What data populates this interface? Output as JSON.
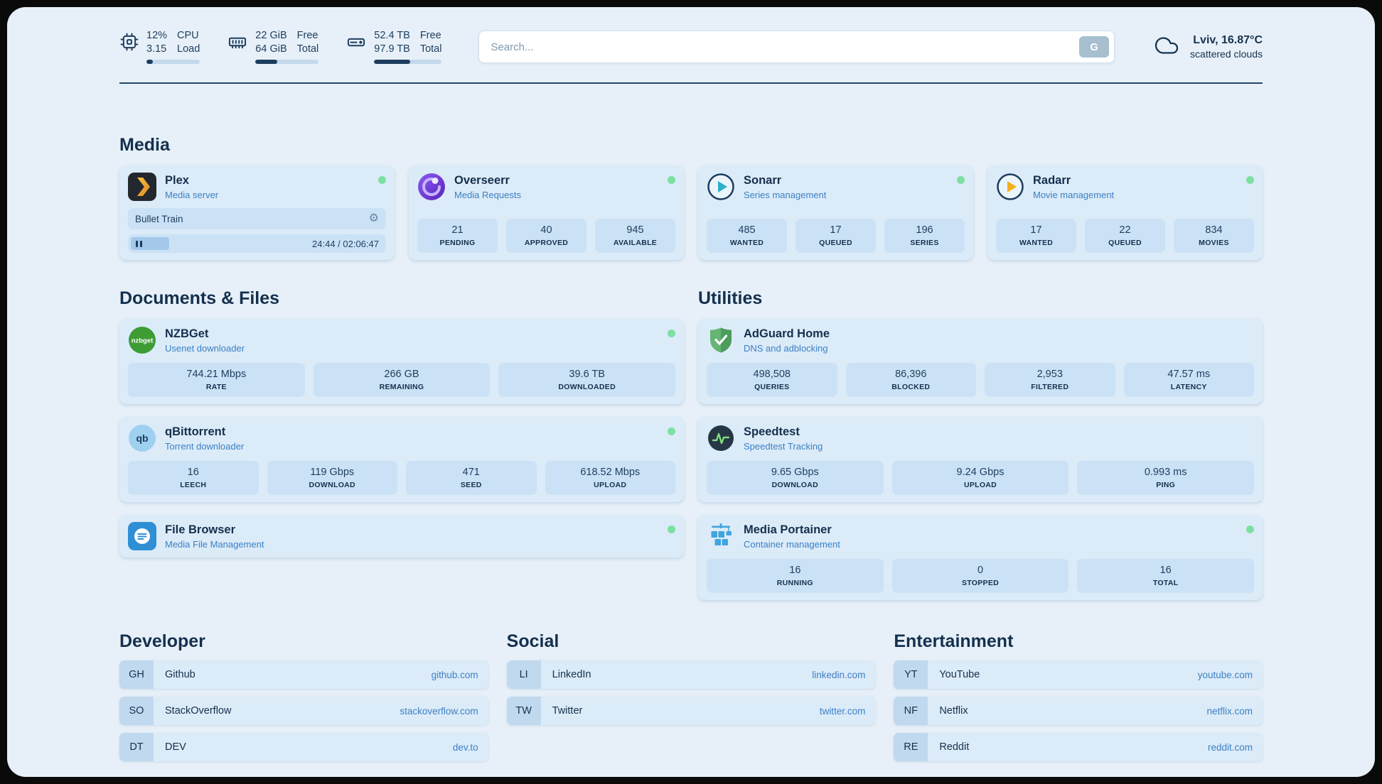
{
  "theme": {
    "background": "#e7f0f8",
    "card": "#dcebf8",
    "stat_block": "#cbe2f6",
    "text_primary": "#14304d",
    "text_accent": "#3b80c6",
    "status_online": "#7ce0a2"
  },
  "topbar": {
    "resources": [
      {
        "id": "cpu",
        "icon": "cpu-icon",
        "rows": [
          {
            "value": "12%",
            "label": "CPU"
          },
          {
            "value": "3.15",
            "label": "Load"
          }
        ],
        "progress": 12
      },
      {
        "id": "memory",
        "icon": "memory-icon",
        "rows": [
          {
            "value": "22 GiB",
            "label": "Free"
          },
          {
            "value": "64 GiB",
            "label": "Total"
          }
        ],
        "progress": 35
      },
      {
        "id": "disk",
        "icon": "disk-icon",
        "rows": [
          {
            "value": "52.4 TB",
            "label": "Free"
          },
          {
            "value": "97.9 TB",
            "label": "Total"
          }
        ],
        "progress": 53
      }
    ],
    "search": {
      "placeholder": "Search...",
      "button_label": "G"
    },
    "weather": {
      "icon": "cloud-icon",
      "location": "Lviv, 16.87°C",
      "condition": "scattered clouds"
    }
  },
  "media_section": {
    "title": "Media",
    "services": [
      {
        "name": "Plex",
        "subtitle": "Media server",
        "icon": "plex-icon",
        "status": "online",
        "now_playing": {
          "title": "Bullet Train",
          "time": "24:44 / 02:06:47"
        }
      },
      {
        "name": "Overseerr",
        "subtitle": "Media Requests",
        "icon": "overseerr-icon",
        "status": "online",
        "stats": [
          {
            "value": "21",
            "label": "PENDING"
          },
          {
            "value": "40",
            "label": "APPROVED"
          },
          {
            "value": "945",
            "label": "AVAILABLE"
          }
        ]
      },
      {
        "name": "Sonarr",
        "subtitle": "Series management",
        "icon": "sonarr-icon",
        "status": "online",
        "stats": [
          {
            "value": "485",
            "label": "WANTED"
          },
          {
            "value": "17",
            "label": "QUEUED"
          },
          {
            "value": "196",
            "label": "SERIES"
          }
        ]
      },
      {
        "name": "Radarr",
        "subtitle": "Movie management",
        "icon": "radarr-icon",
        "status": "online",
        "stats": [
          {
            "value": "17",
            "label": "WANTED"
          },
          {
            "value": "22",
            "label": "QUEUED"
          },
          {
            "value": "834",
            "label": "MOVIES"
          }
        ]
      }
    ]
  },
  "documents_section": {
    "title": "Documents & Files",
    "services": [
      {
        "name": "NZBGet",
        "subtitle": "Usenet downloader",
        "icon": "nzbget-icon",
        "status": "online",
        "stats": [
          {
            "value": "744.21 Mbps",
            "label": "RATE"
          },
          {
            "value": "266 GB",
            "label": "REMAINING"
          },
          {
            "value": "39.6 TB",
            "label": "DOWNLOADED"
          }
        ]
      },
      {
        "name": "qBittorrent",
        "subtitle": "Torrent downloader",
        "icon": "qbittorrent-icon",
        "status": "online",
        "stats": [
          {
            "value": "16",
            "label": "LEECH"
          },
          {
            "value": "119 Gbps",
            "label": "DOWNLOAD"
          },
          {
            "value": "471",
            "label": "SEED"
          },
          {
            "value": "618.52 Mbps",
            "label": "UPLOAD"
          }
        ]
      },
      {
        "name": "File Browser",
        "subtitle": "Media File Management",
        "icon": "filebrowser-icon",
        "status": "online"
      }
    ]
  },
  "utilities_section": {
    "title": "Utilities",
    "services": [
      {
        "name": "AdGuard Home",
        "subtitle": "DNS and adblocking",
        "icon": "adguard-icon",
        "stats": [
          {
            "value": "498,508",
            "label": "QUERIES"
          },
          {
            "value": "86,396",
            "label": "BLOCKED"
          },
          {
            "value": "2,953",
            "label": "FILTERED"
          },
          {
            "value": "47.57 ms",
            "label": "LATENCY"
          }
        ]
      },
      {
        "name": "Speedtest",
        "subtitle": "Speedtest Tracking",
        "icon": "speedtest-icon",
        "stats": [
          {
            "value": "9.65 Gbps",
            "label": "DOWNLOAD"
          },
          {
            "value": "9.24 Gbps",
            "label": "UPLOAD"
          },
          {
            "value": "0.993 ms",
            "label": "PING"
          }
        ]
      },
      {
        "name": "Media Portainer",
        "subtitle": "Container management",
        "icon": "portainer-icon",
        "status": "online",
        "stats": [
          {
            "value": "16",
            "label": "RUNNING"
          },
          {
            "value": "0",
            "label": "STOPPED"
          },
          {
            "value": "16",
            "label": "TOTAL"
          }
        ]
      }
    ]
  },
  "bookmarks": [
    {
      "title": "Developer",
      "items": [
        {
          "abbr": "GH",
          "name": "Github",
          "url": "github.com"
        },
        {
          "abbr": "SO",
          "name": "StackOverflow",
          "url": "stackoverflow.com"
        },
        {
          "abbr": "DT",
          "name": "DEV",
          "url": "dev.to"
        }
      ]
    },
    {
      "title": "Social",
      "items": [
        {
          "abbr": "LI",
          "name": "LinkedIn",
          "url": "linkedin.com"
        },
        {
          "abbr": "TW",
          "name": "Twitter",
          "url": "twitter.com"
        }
      ]
    },
    {
      "title": "Entertainment",
      "items": [
        {
          "abbr": "YT",
          "name": "YouTube",
          "url": "youtube.com"
        },
        {
          "abbr": "NF",
          "name": "Netflix",
          "url": "netflix.com"
        },
        {
          "abbr": "RE",
          "name": "Reddit",
          "url": "reddit.com"
        }
      ]
    }
  ]
}
